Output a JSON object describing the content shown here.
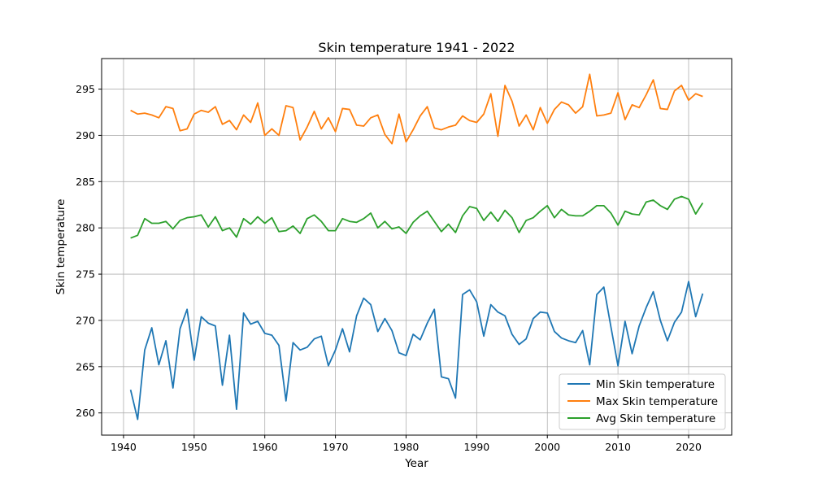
{
  "chart_data": {
    "type": "line",
    "title": "Skin temperature 1941 - 2022",
    "xlabel": "Year",
    "ylabel": "Skin temperature",
    "xlim": [
      1936.9,
      2026.1
    ],
    "ylim": [
      257.6,
      298.3
    ],
    "xticks": [
      1940,
      1950,
      1960,
      1970,
      1980,
      1990,
      2000,
      2010,
      2020
    ],
    "yticks": [
      260,
      265,
      270,
      275,
      280,
      285,
      290,
      295
    ],
    "grid": true,
    "legend_position": "lower-right",
    "x": [
      1941,
      1942,
      1943,
      1944,
      1945,
      1946,
      1947,
      1948,
      1949,
      1950,
      1951,
      1952,
      1953,
      1954,
      1955,
      1956,
      1957,
      1958,
      1959,
      1960,
      1961,
      1962,
      1963,
      1964,
      1965,
      1966,
      1967,
      1968,
      1969,
      1970,
      1971,
      1972,
      1973,
      1974,
      1975,
      1976,
      1977,
      1978,
      1979,
      1980,
      1981,
      1982,
      1983,
      1984,
      1985,
      1986,
      1987,
      1988,
      1989,
      1990,
      1991,
      1992,
      1993,
      1994,
      1995,
      1996,
      1997,
      1998,
      1999,
      2000,
      2001,
      2002,
      2003,
      2004,
      2005,
      2006,
      2007,
      2008,
      2009,
      2010,
      2011,
      2012,
      2013,
      2014,
      2015,
      2016,
      2017,
      2018,
      2019,
      2020,
      2021,
      2022
    ],
    "series": [
      {
        "name": "Min Skin temperature",
        "color": "#1f77b4",
        "values": [
          262.5,
          259.3,
          266.8,
          269.2,
          265.2,
          267.8,
          262.7,
          269.1,
          271.2,
          265.7,
          270.4,
          269.7,
          269.4,
          263.0,
          268.4,
          260.4,
          270.8,
          269.6,
          269.9,
          268.6,
          268.4,
          267.3,
          261.3,
          267.6,
          266.8,
          267.1,
          268.0,
          268.3,
          265.1,
          266.8,
          269.1,
          266.6,
          270.5,
          272.4,
          271.7,
          268.8,
          270.2,
          268.9,
          266.5,
          266.2,
          268.5,
          267.9,
          269.7,
          271.2,
          263.9,
          263.7,
          261.6,
          272.8,
          273.3,
          272.0,
          268.3,
          271.7,
          270.9,
          270.5,
          268.5,
          267.4,
          268.0,
          270.2,
          270.9,
          270.8,
          268.8,
          268.1,
          267.8,
          267.6,
          268.9,
          265.2,
          272.8,
          273.6,
          269.3,
          265.1,
          269.9,
          266.4,
          269.4,
          271.4,
          273.1,
          270.0,
          267.8,
          269.8,
          270.9,
          274.2,
          270.4,
          272.9
        ]
      },
      {
        "name": "Max Skin temperature",
        "color": "#ff7f0e",
        "values": [
          292.7,
          292.3,
          292.4,
          292.2,
          291.9,
          293.1,
          292.9,
          290.5,
          290.7,
          292.3,
          292.7,
          292.5,
          293.1,
          291.2,
          291.6,
          290.6,
          292.2,
          291.4,
          293.5,
          290.0,
          290.7,
          290.0,
          293.2,
          293.0,
          289.5,
          290.9,
          292.6,
          290.7,
          291.9,
          290.4,
          292.9,
          292.8,
          291.1,
          291.0,
          291.9,
          292.2,
          290.1,
          289.1,
          292.3,
          289.3,
          290.6,
          292.1,
          293.1,
          290.8,
          290.6,
          290.9,
          291.1,
          292.1,
          291.6,
          291.4,
          292.3,
          294.5,
          289.9,
          295.4,
          293.7,
          291.0,
          292.2,
          290.6,
          293.0,
          291.3,
          292.8,
          293.6,
          293.3,
          292.4,
          293.1,
          296.6,
          292.1,
          292.2,
          292.4,
          294.6,
          291.7,
          293.3,
          293.0,
          294.4,
          296.0,
          292.9,
          292.8,
          294.8,
          295.4,
          293.8,
          294.5,
          294.2
        ]
      },
      {
        "name": "Avg Skin temperature",
        "color": "#2ca02c",
        "values": [
          278.9,
          279.2,
          281.0,
          280.5,
          280.5,
          280.7,
          279.9,
          280.8,
          281.1,
          281.2,
          281.4,
          280.1,
          281.2,
          279.7,
          280.0,
          279.0,
          281.0,
          280.4,
          281.2,
          280.5,
          281.1,
          279.6,
          279.7,
          280.2,
          279.4,
          281.0,
          281.4,
          280.7,
          279.7,
          279.7,
          281.0,
          280.7,
          280.6,
          281.0,
          281.6,
          280.0,
          280.7,
          279.9,
          280.1,
          279.4,
          280.6,
          281.3,
          281.8,
          280.7,
          279.6,
          280.4,
          279.5,
          281.3,
          282.3,
          282.1,
          280.8,
          281.7,
          280.7,
          281.9,
          281.1,
          279.5,
          280.8,
          281.1,
          281.8,
          282.4,
          281.1,
          282.0,
          281.4,
          281.3,
          281.3,
          281.8,
          282.4,
          282.4,
          281.6,
          280.3,
          281.8,
          281.5,
          281.4,
          282.8,
          283.0,
          282.4,
          282.0,
          283.1,
          283.4,
          283.1,
          281.5,
          282.7
        ]
      }
    ]
  }
}
